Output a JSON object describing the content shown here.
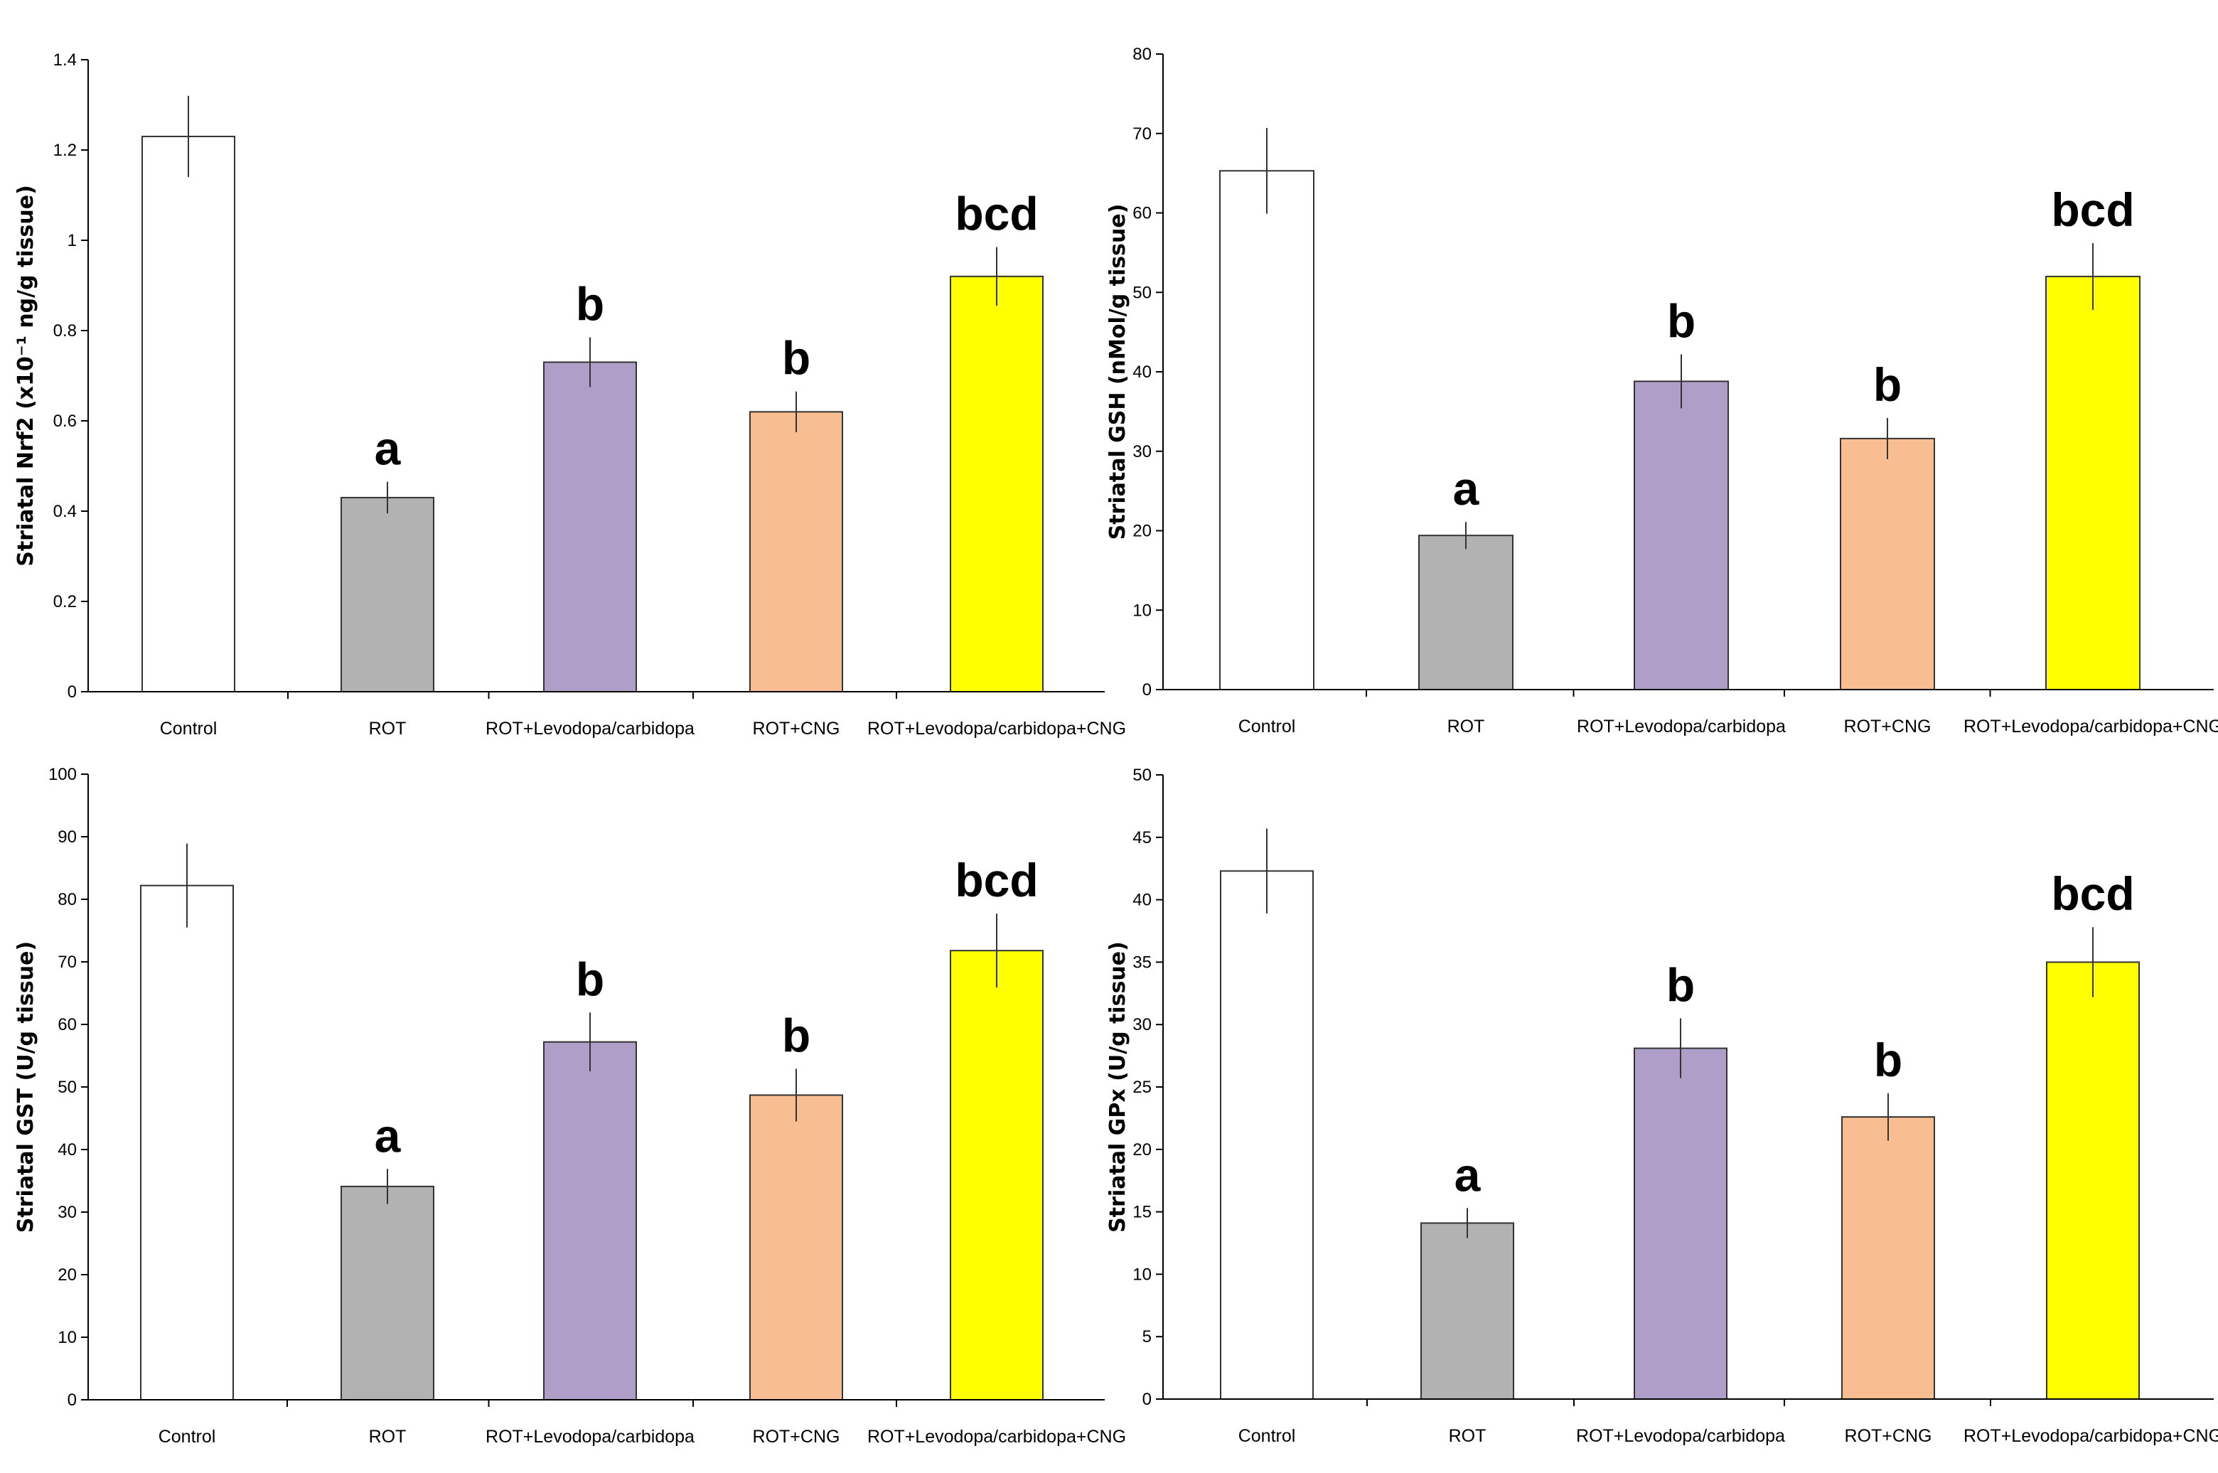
{
  "chart_data": [
    {
      "type": "bar",
      "ylabel": "Striatal Nrf2 (x10⁻¹ ng/g tissue)",
      "ylim": [
        0,
        1.4
      ],
      "yticks": [
        "0",
        "0.2",
        "0.4",
        "0.6",
        "0.8",
        "1",
        "1.2",
        "1.4"
      ],
      "categories": [
        "Control",
        "ROT",
        "ROT+Levodopa/carbidopa",
        "ROT+CNG",
        "ROT+Levodopa/carbidopa+CNG"
      ],
      "values": [
        1.23,
        0.43,
        0.73,
        0.62,
        0.92
      ],
      "errors": [
        0.09,
        0.035,
        0.055,
        0.045,
        0.065
      ],
      "significance": [
        "",
        "a",
        "b",
        "b",
        "bcd"
      ],
      "colors": [
        "#ffffff",
        "#b2b2b2",
        "#ae9ec8",
        "#f8bd90",
        "#ffff00"
      ],
      "grid": false
    },
    {
      "type": "bar",
      "ylabel": "Striatal GSH (nMol/g tissue)",
      "ylim": [
        0,
        80
      ],
      "yticks": [
        "0",
        "10",
        "20",
        "30",
        "40",
        "50",
        "60",
        "70",
        "80"
      ],
      "categories": [
        "Control",
        "ROT",
        "ROT+Levodopa/carbidopa",
        "ROT+CNG",
        "ROT+Levodopa/carbidopa+CNG"
      ],
      "values": [
        65.3,
        19.4,
        38.8,
        31.6,
        52
      ],
      "errors": [
        5.4,
        1.7,
        3.4,
        2.6,
        4.2
      ],
      "significance": [
        "",
        "a",
        "b",
        "b",
        "bcd"
      ],
      "colors": [
        "#ffffff",
        "#b2b2b2",
        "#ae9ec8",
        "#f8bd90",
        "#ffff00"
      ],
      "grid": false
    },
    {
      "type": "bar",
      "ylabel": "Striatal GST (U/g tissue)",
      "ylim": [
        0,
        100
      ],
      "yticks": [
        "0",
        "10",
        "20",
        "30",
        "40",
        "50",
        "60",
        "70",
        "80",
        "90",
        "100"
      ],
      "categories": [
        "Control",
        "ROT",
        "ROT+Levodopa/carbidopa",
        "ROT+CNG",
        "ROT+Levodopa/carbidopa+CNG"
      ],
      "values": [
        82.2,
        34.1,
        57.2,
        48.7,
        71.8
      ],
      "errors": [
        6.7,
        2.8,
        4.7,
        4.2,
        5.9
      ],
      "significance": [
        "",
        "a",
        "b",
        "b",
        "bcd"
      ],
      "colors": [
        "#ffffff",
        "#b2b2b2",
        "#ae9ec8",
        "#f8bd90",
        "#ffff00"
      ],
      "grid": false
    },
    {
      "type": "bar",
      "ylabel": "Striatal GPx (U/g tissue)",
      "ylim": [
        0,
        50
      ],
      "yticks": [
        "0",
        "5",
        "10",
        "15",
        "20",
        "25",
        "30",
        "35",
        "40",
        "45",
        "50"
      ],
      "categories": [
        "Control",
        "ROT",
        "ROT+Levodopa/carbidopa",
        "ROT+CNG",
        "ROT+Levodopa/carbidopa+CNG"
      ],
      "values": [
        42.3,
        14.1,
        28.1,
        22.6,
        35
      ],
      "errors": [
        3.4,
        1.2,
        2.4,
        1.9,
        2.8
      ],
      "significance": [
        "",
        "a",
        "b",
        "b",
        "bcd"
      ],
      "colors": [
        "#ffffff",
        "#b2b2b2",
        "#ae9ec8",
        "#f8bd90",
        "#ffff00"
      ],
      "grid": false
    }
  ]
}
